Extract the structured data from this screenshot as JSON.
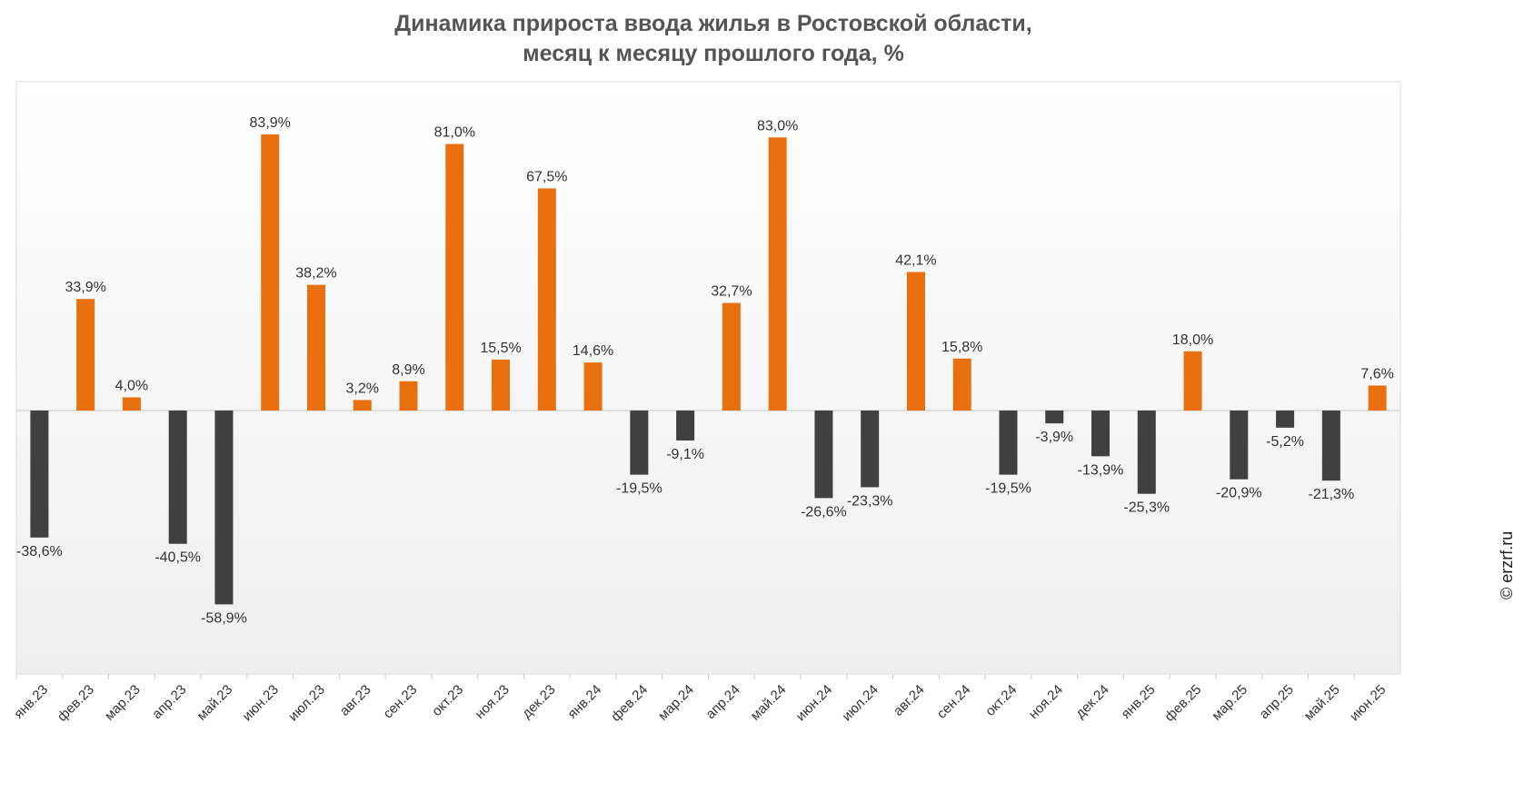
{
  "chart_data": {
    "type": "bar",
    "title_line1": "Динамика прироста ввода жилья в Ростовской области,",
    "title_line2": "месяц к месяцу прошлого года, %",
    "categories": [
      "янв.23",
      "фев.23",
      "мар.23",
      "апр.23",
      "май.23",
      "июн.23",
      "июл.23",
      "авг.23",
      "сен.23",
      "окт.23",
      "ноя.23",
      "дек.23",
      "янв.24",
      "фев.24",
      "мар.24",
      "апр.24",
      "май.24",
      "июн.24",
      "июл.24",
      "авг.24",
      "сен.24",
      "окт.24",
      "ноя.24",
      "дек.24",
      "янв.25",
      "фев.25",
      "мар.25",
      "апр.25",
      "май.25",
      "июн.25"
    ],
    "values": [
      -38.6,
      33.9,
      4.0,
      -40.5,
      -58.9,
      83.9,
      38.2,
      3.2,
      8.9,
      81.0,
      15.5,
      67.5,
      14.6,
      -19.5,
      -9.1,
      32.7,
      83.0,
      -26.6,
      -23.3,
      42.1,
      15.8,
      -19.5,
      -3.9,
      -13.9,
      -25.3,
      18.0,
      -20.9,
      -5.2,
      -21.3,
      7.6
    ],
    "labels": [
      "-38,6%",
      "33,9%",
      "4,0%",
      "-40,5%",
      "-58,9%",
      "83,9%",
      "38,2%",
      "3,2%",
      "8,9%",
      "81,0%",
      "15,5%",
      "67,5%",
      "14,6%",
      "-19,5%",
      "-9,1%",
      "32,7%",
      "83,0%",
      "-26,6%",
      "-23,3%",
      "42,1%",
      "15,8%",
      "-19,5%",
      "-3,9%",
      "-13,9%",
      "-25,3%",
      "18,0%",
      "-20,9%",
      "-5,2%",
      "-21,3%",
      "7,6%"
    ],
    "colors": {
      "positive": "#e8700f",
      "negative": "#404040"
    },
    "ylim": [
      -80,
      100
    ],
    "grid": false,
    "legend": "none"
  },
  "watermark": "© erzrf.ru"
}
